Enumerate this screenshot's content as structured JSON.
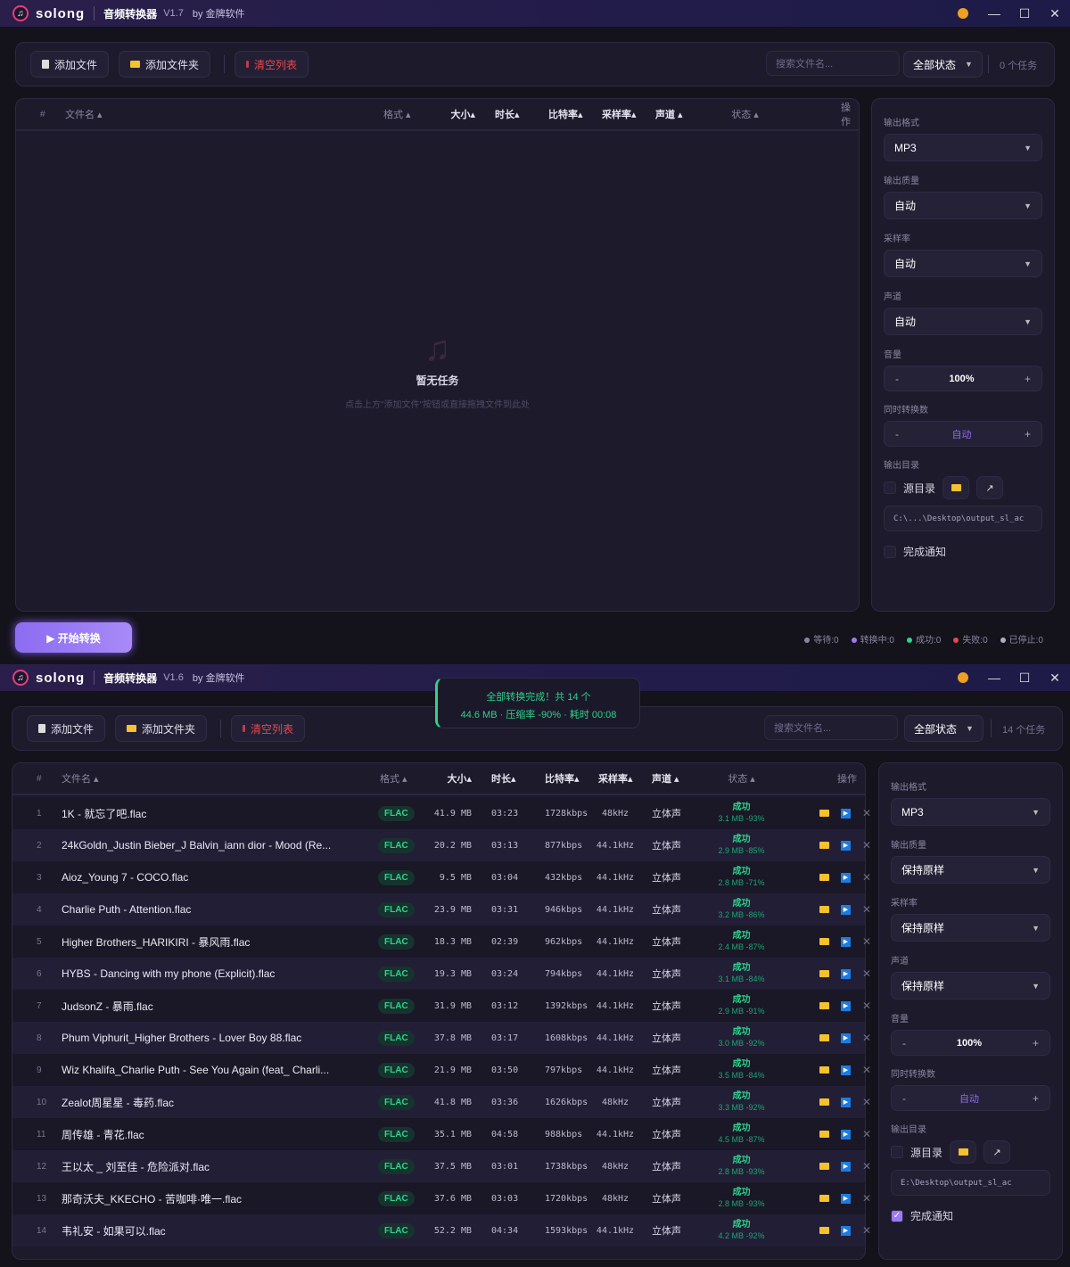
{
  "colors": {
    "accent": "#9b7cf0",
    "success": "#2ed38a",
    "danger": "#e5484d",
    "title_bg": "#2a1f4a"
  },
  "win1": {
    "brand": "solong",
    "title": "音频转换器",
    "version": "V1.7",
    "by": "by 金牌软件",
    "toolbar": {
      "add_file": "添加文件",
      "add_folder": "添加文件夹",
      "clear": "清空列表",
      "search_placeholder": "搜索文件名...",
      "filter": "全部状态",
      "count": "0 个任务"
    },
    "columns": {
      "idx": "#",
      "name": "文件名",
      "format": "格式",
      "size": "大小",
      "duration": "时长",
      "bitrate": "比特率",
      "samplerate": "采样率",
      "channel": "声道",
      "status": "状态",
      "ops": "操作"
    },
    "empty": {
      "icon": "music-note-icon",
      "title": "暂无任务",
      "hint": "点击上方\"添加文件\"按钮或直接拖拽文件到此处"
    },
    "side": {
      "format_label": "输出格式",
      "format": "MP3",
      "quality_label": "输出质量",
      "quality": "自动",
      "sr_label": "采样率",
      "sr": "自动",
      "ch_label": "声道",
      "ch": "自动",
      "vol_label": "音量",
      "vol": "100%",
      "conc_label": "同时转换数",
      "conc": "自动",
      "dir_label": "输出目录",
      "src_dir": "源目录",
      "src_dir_checked": false,
      "path": "C:\\...\\Desktop\\output_sl_ac",
      "notify": "完成通知",
      "notify_checked": false
    },
    "start": "▶ 开始转换",
    "status": [
      {
        "label": "等待:0",
        "color": "#8a86a0"
      },
      {
        "label": "转换中:0",
        "color": "#9b7cf0"
      },
      {
        "label": "成功:0",
        "color": "#2ed38a"
      },
      {
        "label": "失败:0",
        "color": "#e5484d"
      },
      {
        "label": "已停止:0",
        "color": "#b0aec0"
      }
    ]
  },
  "win2": {
    "brand": "solong",
    "title": "音频转换器",
    "version": "V1.6",
    "by": "by 金牌软件",
    "toast": {
      "line1": "全部转换完成！共 14 个",
      "line2": "44.6 MB · 压缩率 -90% · 耗时 00:08"
    },
    "toolbar": {
      "add_file": "添加文件",
      "add_folder": "添加文件夹",
      "clear": "清空列表",
      "search_placeholder": "搜索文件名...",
      "filter": "全部状态",
      "count": "14 个任务"
    },
    "columns": {
      "idx": "#",
      "name": "文件名",
      "format": "格式",
      "size": "大小",
      "duration": "时长",
      "bitrate": "比特率",
      "samplerate": "采样率",
      "channel": "声道",
      "status": "状态",
      "ops": "操作"
    },
    "rows": [
      {
        "idx": "1",
        "name": "1K - 就忘了吧.flac",
        "format": "FLAC",
        "size": "41.9 MB",
        "duration": "03:23",
        "bitrate": "1728kbps",
        "samplerate": "48kHz",
        "channel": "立体声",
        "status": "成功",
        "result": "3.1 MB -93%"
      },
      {
        "idx": "2",
        "name": "24kGoldn_Justin Bieber_J Balvin_iann dior - Mood (Re...",
        "format": "FLAC",
        "size": "20.2 MB",
        "duration": "03:13",
        "bitrate": "877kbps",
        "samplerate": "44.1kHz",
        "channel": "立体声",
        "status": "成功",
        "result": "2.9 MB -85%"
      },
      {
        "idx": "3",
        "name": "Aioz_Young 7 - COCO.flac",
        "format": "FLAC",
        "size": "9.5 MB",
        "duration": "03:04",
        "bitrate": "432kbps",
        "samplerate": "44.1kHz",
        "channel": "立体声",
        "status": "成功",
        "result": "2.8 MB -71%"
      },
      {
        "idx": "4",
        "name": "Charlie Puth - Attention.flac",
        "format": "FLAC",
        "size": "23.9 MB",
        "duration": "03:31",
        "bitrate": "946kbps",
        "samplerate": "44.1kHz",
        "channel": "立体声",
        "status": "成功",
        "result": "3.2 MB -86%"
      },
      {
        "idx": "5",
        "name": "Higher Brothers_HARIKIRI - 暴风雨.flac",
        "format": "FLAC",
        "size": "18.3 MB",
        "duration": "02:39",
        "bitrate": "962kbps",
        "samplerate": "44.1kHz",
        "channel": "立体声",
        "status": "成功",
        "result": "2.4 MB -87%"
      },
      {
        "idx": "6",
        "name": "HYBS - Dancing with my phone (Explicit).flac",
        "format": "FLAC",
        "size": "19.3 MB",
        "duration": "03:24",
        "bitrate": "794kbps",
        "samplerate": "44.1kHz",
        "channel": "立体声",
        "status": "成功",
        "result": "3.1 MB -84%"
      },
      {
        "idx": "7",
        "name": "JudsonZ - 暴雨.flac",
        "format": "FLAC",
        "size": "31.9 MB",
        "duration": "03:12",
        "bitrate": "1392kbps",
        "samplerate": "44.1kHz",
        "channel": "立体声",
        "status": "成功",
        "result": "2.9 MB -91%"
      },
      {
        "idx": "8",
        "name": "Phum Viphurit_Higher Brothers - Lover Boy 88.flac",
        "format": "FLAC",
        "size": "37.8 MB",
        "duration": "03:17",
        "bitrate": "1608kbps",
        "samplerate": "44.1kHz",
        "channel": "立体声",
        "status": "成功",
        "result": "3.0 MB -92%"
      },
      {
        "idx": "9",
        "name": "Wiz Khalifa_Charlie Puth - See You Again (feat_ Charli...",
        "format": "FLAC",
        "size": "21.9 MB",
        "duration": "03:50",
        "bitrate": "797kbps",
        "samplerate": "44.1kHz",
        "channel": "立体声",
        "status": "成功",
        "result": "3.5 MB -84%"
      },
      {
        "idx": "10",
        "name": "Zealot周星星 - 毒药.flac",
        "format": "FLAC",
        "size": "41.8 MB",
        "duration": "03:36",
        "bitrate": "1626kbps",
        "samplerate": "48kHz",
        "channel": "立体声",
        "status": "成功",
        "result": "3.3 MB -92%"
      },
      {
        "idx": "11",
        "name": "周传雄 - 青花.flac",
        "format": "FLAC",
        "size": "35.1 MB",
        "duration": "04:58",
        "bitrate": "988kbps",
        "samplerate": "44.1kHz",
        "channel": "立体声",
        "status": "成功",
        "result": "4.5 MB -87%"
      },
      {
        "idx": "12",
        "name": "王以太 _ 刘至佳 - 危险派对.flac",
        "format": "FLAC",
        "size": "37.5 MB",
        "duration": "03:01",
        "bitrate": "1738kbps",
        "samplerate": "48kHz",
        "channel": "立体声",
        "status": "成功",
        "result": "2.8 MB -93%"
      },
      {
        "idx": "13",
        "name": "那奇沃夫_KKECHO - 苦咖啡·唯一.flac",
        "format": "FLAC",
        "size": "37.6 MB",
        "duration": "03:03",
        "bitrate": "1720kbps",
        "samplerate": "48kHz",
        "channel": "立体声",
        "status": "成功",
        "result": "2.8 MB -93%"
      },
      {
        "idx": "14",
        "name": "韦礼安 - 如果可以.flac",
        "format": "FLAC",
        "size": "52.2 MB",
        "duration": "04:34",
        "bitrate": "1593kbps",
        "samplerate": "44.1kHz",
        "channel": "立体声",
        "status": "成功",
        "result": "4.2 MB -92%"
      }
    ],
    "side": {
      "format_label": "输出格式",
      "format": "MP3",
      "quality_label": "输出质量",
      "quality": "保持原样",
      "sr_label": "采样率",
      "sr": "保持原样",
      "ch_label": "声道",
      "ch": "保持原样",
      "vol_label": "音量",
      "vol": "100%",
      "conc_label": "同时转换数",
      "conc": "自动",
      "dir_label": "输出目录",
      "src_dir": "源目录",
      "src_dir_checked": false,
      "path": "E:\\Desktop\\output_sl_ac",
      "notify": "完成通知",
      "notify_checked": true
    }
  }
}
